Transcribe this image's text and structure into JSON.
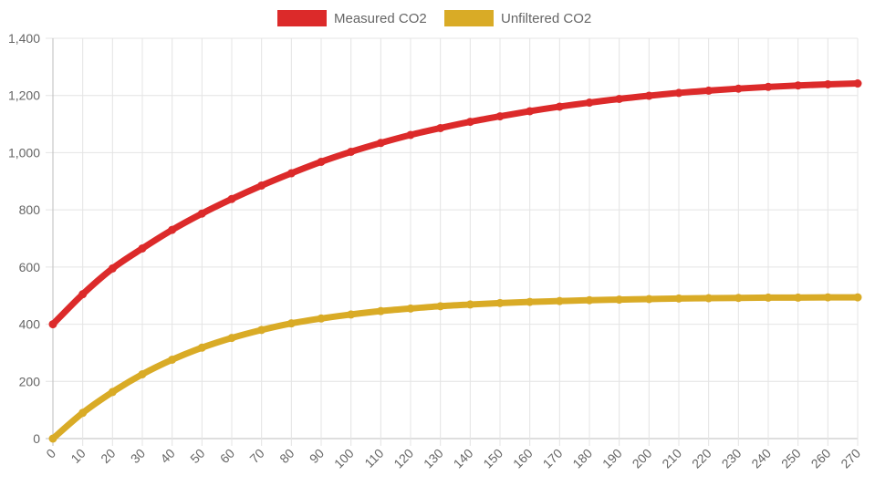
{
  "chart_data": {
    "type": "line",
    "title": "",
    "xlabel": "",
    "ylabel": "",
    "legend_position": "top-center",
    "grid": true,
    "xlim": [
      0,
      270
    ],
    "ylim": [
      0,
      1400
    ],
    "x_ticks": [
      "0",
      "10",
      "20",
      "30",
      "40",
      "50",
      "60",
      "70",
      "80",
      "90",
      "100",
      "110",
      "120",
      "130",
      "140",
      "150",
      "160",
      "170",
      "180",
      "190",
      "200",
      "210",
      "220",
      "230",
      "240",
      "250",
      "260",
      "270"
    ],
    "y_ticks": [
      "0",
      "200",
      "400",
      "600",
      "800",
      "1,000",
      "1,200",
      "1,400"
    ],
    "y_tick_values": [
      0,
      200,
      400,
      600,
      800,
      1000,
      1200,
      1400
    ],
    "x": [
      0,
      10,
      20,
      30,
      40,
      50,
      60,
      70,
      80,
      90,
      100,
      110,
      120,
      130,
      140,
      150,
      160,
      170,
      180,
      190,
      200,
      210,
      220,
      230,
      240,
      250,
      260,
      270
    ],
    "series": [
      {
        "name": "Measured CO2",
        "color": "#dc2a2a",
        "values": [
          400,
          505,
          595,
          665,
          730,
          787,
          838,
          885,
          928,
          968,
          1003,
          1034,
          1062,
          1086,
          1108,
          1127,
          1145,
          1161,
          1175,
          1188,
          1199,
          1209,
          1217,
          1224,
          1230,
          1235,
          1239,
          1242
        ]
      },
      {
        "name": "Unfiltered CO2",
        "color": "#d9ab26",
        "values": [
          0,
          90,
          163,
          225,
          276,
          318,
          352,
          380,
          403,
          420,
          434,
          446,
          455,
          463,
          469,
          474,
          478,
          481,
          484,
          486,
          488,
          490,
          491,
          492,
          493,
          493,
          494,
          494
        ]
      }
    ]
  }
}
